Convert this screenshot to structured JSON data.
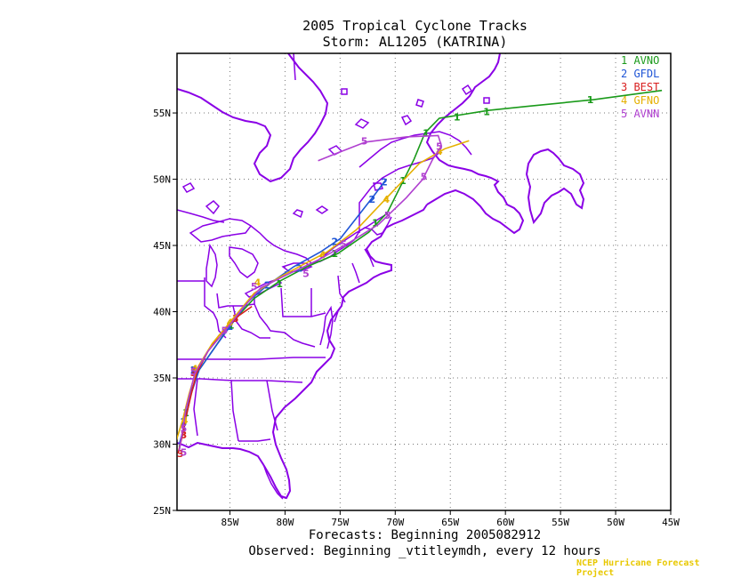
{
  "title": {
    "line1": "2005 Tropical Cyclone Tracks",
    "line2": "Storm: AL1205 (KATRINA)"
  },
  "footer": {
    "forecasts": "Forecasts: Beginning 2005082912",
    "observed": "Observed: Beginning _vtitleymdh, every 12 hours",
    "credit": "NCEP Hurricane Forecast Project"
  },
  "axes": {
    "lon_ticks": [
      "85W",
      "80W",
      "75W",
      "70W",
      "65W",
      "60W",
      "55W",
      "50W",
      "45W"
    ],
    "lat_ticks": [
      "25N",
      "30N",
      "35N",
      "40N",
      "45N",
      "50N",
      "55N"
    ]
  },
  "map": {
    "coastline_color": "#8a00e6",
    "grid": "dotted"
  },
  "legend": [
    {
      "num": "1",
      "name": "AVNO",
      "color": "#1a9a1a"
    },
    {
      "num": "2",
      "name": "GFDL",
      "color": "#1f55d6"
    },
    {
      "num": "3",
      "name": "BEST",
      "color": "#d81e1e"
    },
    {
      "num": "4",
      "name": "GFNO",
      "color": "#e5b000"
    },
    {
      "num": "5",
      "name": "AVNN",
      "color": "#b040d0"
    }
  ],
  "chart_data": {
    "type": "line",
    "title": "2005 Tropical Cyclone Tracks",
    "xlim": [
      -89.8,
      -45
    ],
    "ylim": [
      25,
      59.5
    ],
    "series": [
      {
        "name": "AVNO",
        "color": "#1a9a1a",
        "marker": "1",
        "points": [
          [
            -89.6,
            29.8
          ],
          [
            -89.2,
            31.0
          ],
          [
            -88.9,
            32.4
          ],
          [
            -88.5,
            34.0
          ],
          [
            -87.8,
            35.6
          ],
          [
            -86.3,
            37.4
          ],
          [
            -84.8,
            39.2
          ],
          [
            -82.8,
            41.0
          ],
          [
            -80.5,
            42.3
          ],
          [
            -78.0,
            43.4
          ],
          [
            -75.2,
            44.4
          ],
          [
            -72.4,
            46.0
          ],
          [
            -70.7,
            47.5
          ],
          [
            -69.5,
            49.5
          ],
          [
            -68.3,
            51.5
          ],
          [
            -67.3,
            53.5
          ],
          [
            -66.0,
            54.6
          ],
          [
            -64.5,
            54.8
          ],
          [
            -61.5,
            55.2
          ],
          [
            -58.0,
            55.5
          ],
          [
            -52.0,
            56.0
          ],
          [
            -45.8,
            56.7
          ]
        ],
        "labels": [
          [
            -89.0,
            32.4
          ],
          [
            -88.3,
            35.6
          ],
          [
            -84.9,
            39.0
          ],
          [
            -80.5,
            42.1
          ],
          [
            -75.5,
            44.4
          ],
          [
            -71.8,
            46.7
          ],
          [
            -69.3,
            49.9
          ],
          [
            -67.2,
            53.5
          ],
          [
            -64.4,
            54.7
          ],
          [
            -61.7,
            55.1
          ],
          [
            -52.3,
            56.0
          ]
        ]
      },
      {
        "name": "GFDL",
        "color": "#1f55d6",
        "marker": "2",
        "points": [
          [
            -89.6,
            30.0
          ],
          [
            -89.1,
            31.5
          ],
          [
            -88.6,
            33.6
          ],
          [
            -87.8,
            35.6
          ],
          [
            -86.2,
            37.5
          ],
          [
            -84.8,
            39.1
          ],
          [
            -83.3,
            40.8
          ],
          [
            -81.6,
            42.0
          ],
          [
            -79.2,
            43.4
          ],
          [
            -76.8,
            44.5
          ],
          [
            -75.0,
            45.5
          ],
          [
            -73.3,
            47.3
          ],
          [
            -71.8,
            48.9
          ],
          [
            -70.9,
            49.9
          ]
        ],
        "labels": [
          [
            -89.2,
            31.7
          ],
          [
            -88.3,
            35.6
          ],
          [
            -85.0,
            38.9
          ],
          [
            -81.6,
            42.0
          ],
          [
            -78.7,
            43.3
          ],
          [
            -75.5,
            45.3
          ],
          [
            -72.1,
            48.5
          ],
          [
            -71.0,
            49.8
          ]
        ]
      },
      {
        "name": "BEST",
        "color": "#d81e1e",
        "marker": "3",
        "points": [
          [
            -89.7,
            29.3
          ],
          [
            -89.3,
            30.7
          ],
          [
            -89.0,
            32.0
          ],
          [
            -88.5,
            33.8
          ],
          [
            -88.0,
            35.4
          ],
          [
            -87.0,
            37.0
          ],
          [
            -86.0,
            38.2
          ],
          [
            -84.2,
            39.7
          ],
          [
            -83.0,
            40.4
          ]
        ],
        "labels": [
          [
            -89.5,
            29.3
          ],
          [
            -89.2,
            30.7
          ],
          [
            -88.3,
            35.4
          ],
          [
            -84.5,
            39.5
          ]
        ]
      },
      {
        "name": "GFNO",
        "color": "#e5b000",
        "marker": "4",
        "points": [
          [
            -89.9,
            30.2
          ],
          [
            -89.3,
            31.8
          ],
          [
            -88.7,
            33.8
          ],
          [
            -88.0,
            35.7
          ],
          [
            -86.6,
            37.6
          ],
          [
            -84.8,
            39.4
          ],
          [
            -82.8,
            41.4
          ],
          [
            -80.5,
            42.6
          ],
          [
            -78.5,
            43.5
          ],
          [
            -76.2,
            44.5
          ],
          [
            -73.5,
            46.2
          ],
          [
            -71.0,
            48.4
          ],
          [
            -67.8,
            51.2
          ],
          [
            -65.5,
            52.3
          ],
          [
            -63.3,
            52.9
          ]
        ],
        "labels": [
          [
            -89.1,
            31.8
          ],
          [
            -88.2,
            35.7
          ],
          [
            -85.0,
            39.2
          ],
          [
            -82.5,
            42.2
          ],
          [
            -76.6,
            44.3
          ],
          [
            -70.8,
            48.5
          ],
          [
            -66.0,
            52.1
          ]
        ]
      },
      {
        "name": "AVNN",
        "color": "#b040d0",
        "marker": "5",
        "points": [
          [
            -89.6,
            29.5
          ],
          [
            -89.3,
            31.0
          ],
          [
            -89.0,
            32.6
          ],
          [
            -88.2,
            35.3
          ],
          [
            -87.0,
            37.0
          ],
          [
            -85.3,
            38.7
          ],
          [
            -83.8,
            40.3
          ],
          [
            -82.2,
            41.8
          ],
          [
            -79.8,
            42.8
          ],
          [
            -77.0,
            43.9
          ],
          [
            -74.2,
            45.2
          ],
          [
            -71.5,
            46.6
          ],
          [
            -69.0,
            48.6
          ],
          [
            -67.5,
            50.0
          ],
          [
            -66.6,
            51.5
          ],
          [
            -65.8,
            52.5
          ],
          [
            -66.1,
            53.3
          ],
          [
            -69.0,
            53.2
          ],
          [
            -72.7,
            52.8
          ],
          [
            -75.5,
            51.9
          ],
          [
            -77.0,
            51.4
          ]
        ],
        "labels": [
          [
            -89.2,
            29.4
          ],
          [
            -89.2,
            31.2
          ],
          [
            -88.3,
            35.5
          ],
          [
            -85.5,
            38.6
          ],
          [
            -82.8,
            41.9
          ],
          [
            -78.1,
            42.9
          ],
          [
            -74.7,
            45.1
          ],
          [
            -70.7,
            47.3
          ],
          [
            -67.4,
            50.2
          ],
          [
            -66.0,
            52.5
          ],
          [
            -72.8,
            52.9
          ]
        ]
      }
    ]
  }
}
